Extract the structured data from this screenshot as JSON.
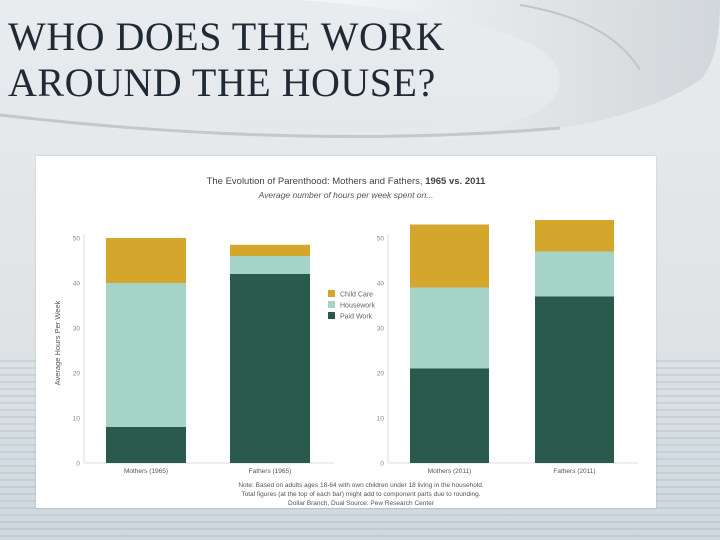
{
  "slide": {
    "title_line1": "WHO DOES THE WORK",
    "title_line2": "AROUND THE HOUSE?"
  },
  "chart_data": {
    "type": "bar",
    "stacked": true,
    "title_part1": "The Evolution of Parenthood: Mothers and Fathers, ",
    "title_part2": "1965 vs. 2011",
    "subtitle": "Average number of hours per week spent on...",
    "ylabel": "Average Hours Per Week",
    "ylim": [
      0,
      50
    ],
    "yticks": [
      "0",
      "10",
      "20",
      "30",
      "40",
      "50"
    ],
    "legend_position": "center",
    "series": [
      {
        "name": "Child Care",
        "color": "#d4a72c"
      },
      {
        "name": "Housework",
        "color": "#a6d3c8"
      },
      {
        "name": "Paid Work",
        "color": "#2a5a4d"
      }
    ],
    "panels": [
      {
        "categories": [
          "Mothers (1965)",
          "Fathers (1965)"
        ],
        "values": {
          "Paid Work": [
            8,
            42
          ],
          "Housework": [
            32,
            4
          ],
          "Child Care": [
            10,
            2.5
          ]
        }
      },
      {
        "categories": [
          "Mothers (2011)",
          "Fathers (2011)"
        ],
        "values": {
          "Paid Work": [
            21,
            37
          ],
          "Housework": [
            18,
            10
          ],
          "Child Care": [
            14,
            7
          ]
        }
      }
    ],
    "note_line1": "Note: Based on adults ages 18-64 with own children under 18 living in the household.",
    "note_line2": "Total figures (at the top of each bar) might add to component parts due to rounding.",
    "note_line3": "Dollar Branch, Dual       Source: Pew Research Center"
  }
}
